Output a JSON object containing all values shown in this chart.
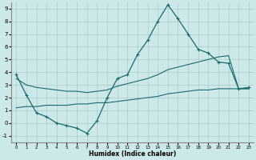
{
  "xlabel": "Humidex (Indice chaleur)",
  "bg_color": "#cce8e8",
  "line_color": "#1a6b6b",
  "grid_color": "#aacccc",
  "xlim": [
    -0.5,
    23.5
  ],
  "ylim": [
    -1.5,
    9.5
  ],
  "xticks": [
    0,
    1,
    2,
    3,
    4,
    5,
    6,
    7,
    8,
    9,
    10,
    11,
    12,
    13,
    14,
    15,
    16,
    17,
    18,
    19,
    20,
    21,
    22,
    23
  ],
  "yticks": [
    -1,
    0,
    1,
    2,
    3,
    4,
    5,
    6,
    7,
    8,
    9
  ],
  "curve1_x": [
    0,
    1,
    2,
    3,
    4,
    5,
    6,
    7,
    8,
    9,
    10,
    11,
    12,
    13,
    14,
    15,
    16,
    17,
    18,
    19,
    20,
    21,
    22,
    23
  ],
  "curve1_y": [
    3.8,
    2.2,
    0.8,
    0.5,
    0.0,
    -0.2,
    -0.4,
    -0.8,
    0.2,
    2.0,
    3.5,
    3.8,
    5.4,
    6.5,
    8.0,
    9.3,
    8.2,
    7.0,
    5.8,
    5.5,
    4.8,
    4.7,
    2.7,
    2.8
  ],
  "curve2_x": [
    0,
    1,
    2,
    3,
    4,
    5,
    6,
    7,
    8,
    9,
    10,
    11,
    12,
    13,
    14,
    15,
    16,
    17,
    18,
    19,
    20,
    21,
    22,
    23
  ],
  "curve2_y": [
    3.5,
    3.0,
    2.8,
    2.7,
    2.6,
    2.5,
    2.5,
    2.4,
    2.5,
    2.6,
    2.9,
    3.1,
    3.3,
    3.5,
    3.8,
    4.2,
    4.4,
    4.6,
    4.8,
    5.0,
    5.2,
    5.3,
    2.7,
    2.7
  ],
  "curve3_x": [
    0,
    1,
    2,
    3,
    4,
    5,
    6,
    7,
    8,
    9,
    10,
    11,
    12,
    13,
    14,
    15,
    16,
    17,
    18,
    19,
    20,
    21,
    22,
    23
  ],
  "curve3_y": [
    1.2,
    1.3,
    1.3,
    1.4,
    1.4,
    1.4,
    1.5,
    1.5,
    1.6,
    1.6,
    1.7,
    1.8,
    1.9,
    2.0,
    2.1,
    2.3,
    2.4,
    2.5,
    2.6,
    2.6,
    2.7,
    2.7,
    2.7,
    2.7
  ]
}
